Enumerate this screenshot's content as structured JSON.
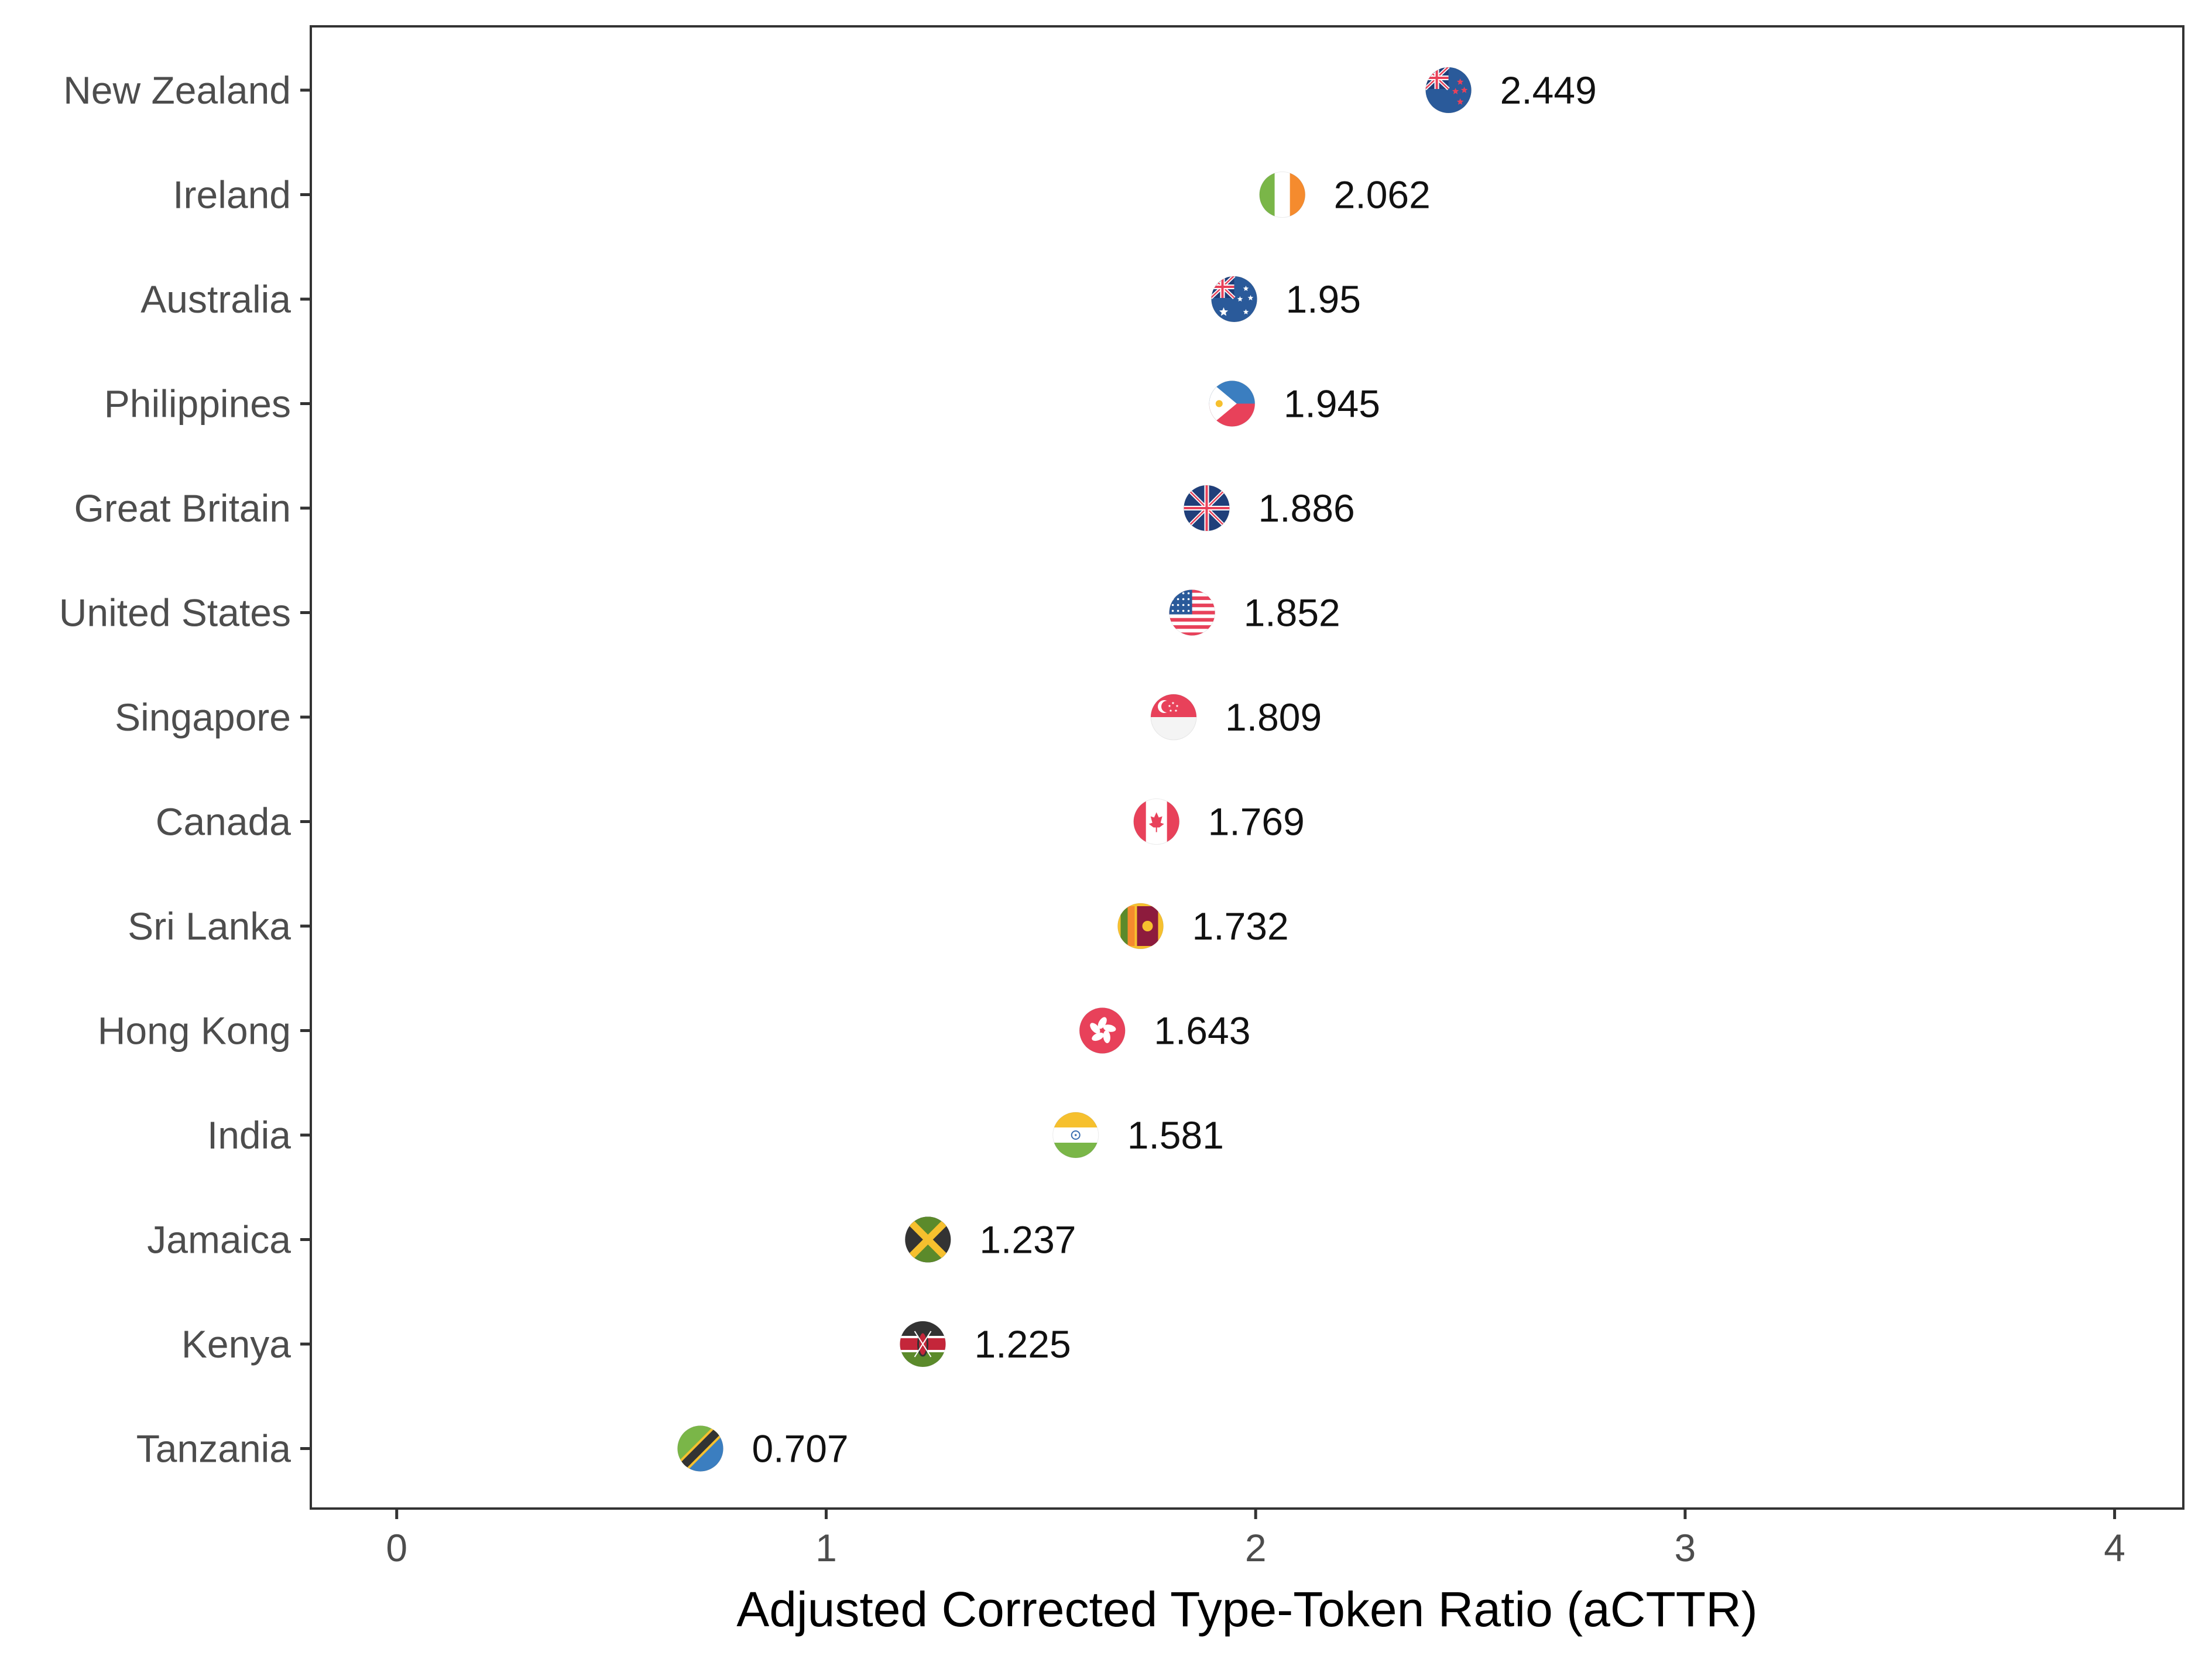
{
  "chart_data": {
    "type": "scatter",
    "xlabel": "Adjusted Corrected Type-Token Ratio (aCTTR)",
    "xlim": [
      -0.2,
      4.16
    ],
    "x_ticks": [
      "0",
      "1",
      "2",
      "3",
      "4"
    ],
    "x_tick_values": [
      0,
      1,
      2,
      3,
      4
    ],
    "grid": false,
    "points": [
      {
        "category": "New Zealand",
        "value": 2.449,
        "label": "2.449",
        "flag": "new-zealand-flag-icon"
      },
      {
        "category": "Ireland",
        "value": 2.062,
        "label": "2.062",
        "flag": "ireland-flag-icon"
      },
      {
        "category": "Australia",
        "value": 1.95,
        "label": "1.95",
        "flag": "australia-flag-icon"
      },
      {
        "category": "Philippines",
        "value": 1.945,
        "label": "1.945",
        "flag": "philippines-flag-icon"
      },
      {
        "category": "Great Britain",
        "value": 1.886,
        "label": "1.886",
        "flag": "great-britain-flag-icon"
      },
      {
        "category": "United States",
        "value": 1.852,
        "label": "1.852",
        "flag": "united-states-flag-icon"
      },
      {
        "category": "Singapore",
        "value": 1.809,
        "label": "1.809",
        "flag": "singapore-flag-icon"
      },
      {
        "category": "Canada",
        "value": 1.769,
        "label": "1.769",
        "flag": "canada-flag-icon"
      },
      {
        "category": "Sri Lanka",
        "value": 1.732,
        "label": "1.732",
        "flag": "sri-lanka-flag-icon"
      },
      {
        "category": "Hong Kong",
        "value": 1.643,
        "label": "1.643",
        "flag": "hong-kong-flag-icon"
      },
      {
        "category": "India",
        "value": 1.581,
        "label": "1.581",
        "flag": "india-flag-icon"
      },
      {
        "category": "Jamaica",
        "value": 1.237,
        "label": "1.237",
        "flag": "jamaica-flag-icon"
      },
      {
        "category": "Kenya",
        "value": 1.225,
        "label": "1.225",
        "flag": "kenya-flag-icon"
      },
      {
        "category": "Tanzania",
        "value": 0.707,
        "label": "0.707",
        "flag": "tanzania-flag-icon"
      }
    ]
  },
  "colors": {
    "axis": "#333333",
    "tick_text": "#4d4d4d",
    "value_text": "#111111",
    "flag_blue": "#2a5a9a",
    "flag_red": "#e8415a",
    "flag_green": "#7ab648",
    "flag_orange": "#f58b2e",
    "flag_yellow": "#f6c02e",
    "flag_dark": "#333333",
    "flag_white": "#ffffff"
  }
}
